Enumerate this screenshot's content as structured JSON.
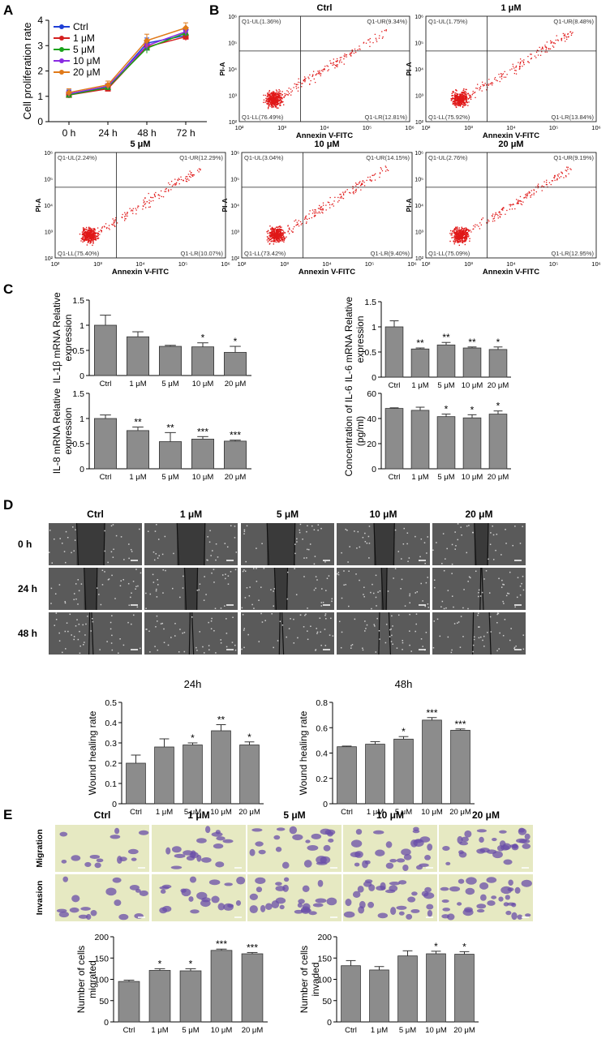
{
  "panel_labels": [
    "A",
    "B",
    "C",
    "D",
    "E"
  ],
  "conditions": [
    "Ctrl",
    "1 μM",
    "5 μM",
    "10 μM",
    "20 μM"
  ],
  "chart_data": [
    {
      "id": "A",
      "type": "line",
      "title": "",
      "xlabel": "",
      "ylabel": "Cell proliferation rate",
      "categories": [
        "0 h",
        "24 h",
        "48 h",
        "72 h"
      ],
      "ylim": [
        0,
        4
      ],
      "yticks": [
        0,
        1,
        2,
        3,
        4
      ],
      "legend_position": "top-left",
      "series": [
        {
          "name": "Ctrl",
          "color": "#1f3fd6",
          "values": [
            1.1,
            1.35,
            3.1,
            3.4
          ],
          "err": [
            0.15,
            0.12,
            0.2,
            0.15
          ]
        },
        {
          "name": "1 μM",
          "color": "#d42020",
          "values": [
            1.05,
            1.3,
            2.95,
            3.35
          ],
          "err": [
            0.12,
            0.1,
            0.2,
            0.15
          ]
        },
        {
          "name": "5 μM",
          "color": "#1aa21a",
          "values": [
            1.05,
            1.35,
            2.9,
            3.5
          ],
          "err": [
            0.12,
            0.1,
            0.2,
            0.15
          ]
        },
        {
          "name": "10 μM",
          "color": "#8a2be2",
          "values": [
            1.1,
            1.4,
            3.0,
            3.55
          ],
          "err": [
            0.12,
            0.1,
            0.2,
            0.15
          ]
        },
        {
          "name": "20 μM",
          "color": "#e07a1a",
          "values": [
            1.15,
            1.45,
            3.2,
            3.7
          ],
          "err": [
            0.15,
            0.15,
            0.25,
            0.2
          ]
        }
      ]
    },
    {
      "id": "C1",
      "type": "bar",
      "ylabel": "IL-1β mRNA Relative expression",
      "categories": [
        "Ctrl",
        "1 μM",
        "5 μM",
        "10 μM",
        "20 μM"
      ],
      "values": [
        1.0,
        0.77,
        0.58,
        0.57,
        0.46
      ],
      "err": [
        0.2,
        0.1,
        0.02,
        0.08,
        0.12
      ],
      "sig": [
        "",
        "",
        "",
        "*",
        "*"
      ],
      "ylim": [
        0,
        1.5
      ],
      "yticks": [
        0,
        0.5,
        1.0,
        1.5
      ]
    },
    {
      "id": "C2",
      "type": "bar",
      "ylabel": "IL-6 mRNA Relative expression",
      "categories": [
        "Ctrl",
        "1 μM",
        "5 μM",
        "10 μM",
        "20 μM"
      ],
      "values": [
        1.0,
        0.56,
        0.64,
        0.58,
        0.55
      ],
      "err": [
        0.12,
        0.02,
        0.05,
        0.02,
        0.05
      ],
      "sig": [
        "",
        "**",
        "**",
        "**",
        "*"
      ],
      "ylim": [
        0,
        1.5
      ],
      "yticks": [
        0,
        0.5,
        1.0,
        1.5
      ]
    },
    {
      "id": "C3",
      "type": "bar",
      "ylabel": "IL-8 mRNA Relative expression",
      "categories": [
        "Ctrl",
        "1 μM",
        "5 μM",
        "10 μM",
        "20 μM"
      ],
      "values": [
        1.0,
        0.76,
        0.54,
        0.59,
        0.55
      ],
      "err": [
        0.07,
        0.07,
        0.18,
        0.05,
        0.02
      ],
      "sig": [
        "",
        "**",
        "**",
        "***",
        "***"
      ],
      "ylim": [
        0,
        1.5
      ],
      "yticks": [
        0,
        0.5,
        1.0,
        1.5
      ]
    },
    {
      "id": "C4",
      "type": "bar",
      "ylabel": "Concentration of IL-6 (pg/ml)",
      "categories": [
        "Ctrl",
        "1 μM",
        "5 μM",
        "10 μM",
        "20 μM"
      ],
      "values": [
        48,
        46.5,
        41.5,
        40.5,
        43.5
      ],
      "err": [
        0.5,
        2.5,
        2,
        2.5,
        2.5
      ],
      "sig": [
        "",
        "",
        "*",
        "*",
        "*"
      ],
      "ylim": [
        0,
        60
      ],
      "yticks": [
        0,
        20,
        40,
        60
      ]
    },
    {
      "id": "D1",
      "type": "bar",
      "title": "24h",
      "ylabel": "Wound healing rate",
      "categories": [
        "Ctrl",
        "1 μM",
        "5 μM",
        "10 μM",
        "20 μM"
      ],
      "values": [
        0.2,
        0.28,
        0.29,
        0.36,
        0.29
      ],
      "err": [
        0.04,
        0.04,
        0.01,
        0.03,
        0.015
      ],
      "sig": [
        "",
        "",
        "*",
        "**",
        "*"
      ],
      "ylim": [
        0,
        0.5
      ],
      "yticks": [
        0,
        0.1,
        0.2,
        0.3,
        0.4,
        0.5
      ]
    },
    {
      "id": "D2",
      "type": "bar",
      "title": "48h",
      "ylabel": "Wound healing rate",
      "categories": [
        "Ctrl",
        "1 μM",
        "5 μM",
        "10 μM",
        "20 μM"
      ],
      "values": [
        0.45,
        0.47,
        0.51,
        0.66,
        0.58
      ],
      "err": [
        0.005,
        0.02,
        0.02,
        0.02,
        0.01
      ],
      "sig": [
        "",
        "",
        "*",
        "***",
        "***"
      ],
      "ylim": [
        0,
        0.8
      ],
      "yticks": [
        0,
        0.2,
        0.4,
        0.6,
        0.8
      ]
    },
    {
      "id": "E1",
      "type": "bar",
      "ylabel": "Number of cells migrated",
      "categories": [
        "Ctrl",
        "1 μM",
        "5 μM",
        "10 μM",
        "20 μM"
      ],
      "values": [
        95,
        121,
        120,
        168,
        160
      ],
      "err": [
        3,
        4,
        5,
        3,
        3
      ],
      "sig": [
        "",
        "*",
        "*",
        "***",
        "***"
      ],
      "ylim": [
        0,
        200
      ],
      "yticks": [
        0,
        50,
        100,
        150,
        200
      ]
    },
    {
      "id": "E2",
      "type": "bar",
      "ylabel": "Number of cells invaded",
      "categories": [
        "Ctrl",
        "1 μM",
        "5 μM",
        "10 μM",
        "20 μM"
      ],
      "values": [
        132,
        122,
        155,
        160,
        159
      ],
      "err": [
        12,
        8,
        12,
        6,
        6
      ],
      "sig": [
        "",
        "",
        "",
        "*",
        "*"
      ],
      "ylim": [
        0,
        200
      ],
      "yticks": [
        0,
        50,
        100,
        150,
        200
      ]
    }
  ],
  "flow_cytometry": {
    "xlabel": "Annexin V-FITC",
    "ylabel": "PI-A",
    "xticks": [
      "10²",
      "10³",
      "10⁴",
      "10⁵",
      "10⁶"
    ],
    "yticks": [
      "10²",
      "10³",
      "10⁴",
      "10⁵",
      "10⁶"
    ],
    "plots": [
      {
        "title": "Ctrl",
        "ul": "Q1-UL(1.36%)",
        "ur": "Q1-UR(9.34%)",
        "ll": "Q1-LL(76.49%)",
        "lr": "Q1-LR(12.81%)"
      },
      {
        "title": "1 μM",
        "ul": "Q1-UL(1.75%)",
        "ur": "Q1-UR(8.48%)",
        "ll": "Q1-LL(75.92%)",
        "lr": "Q1-LR(13.84%)"
      },
      {
        "title": "5 μM",
        "ul": "Q1-UL(2.24%)",
        "ur": "Q1-UR(12.29%)",
        "ll": "Q1-LL(75.40%)",
        "lr": "Q1-LR(10.07%)"
      },
      {
        "title": "10 μM",
        "ul": "Q1-UL(3.04%)",
        "ur": "Q1-UR(14.15%)",
        "ll": "Q1-LL(73.42%)",
        "lr": "Q1-LR(9.40%)"
      },
      {
        "title": "20 μM",
        "ul": "Q1-UL(2.76%)",
        "ur": "Q1-UR(9.19%)",
        "ll": "Q1-LL(75.09%)",
        "lr": "Q1-LR(12.95%)"
      }
    ]
  },
  "wound": {
    "rows": [
      "0 h",
      "24 h",
      "48 h"
    ]
  },
  "transwell": {
    "rows": [
      "Migration",
      "Invasion"
    ]
  },
  "colors": {
    "bar": "#8c8c8c",
    "dots": "#e01818",
    "image_bg": "#5a5a5a",
    "stain_bg": "#e6e9c2",
    "stain_cells": "#6a4ea8"
  }
}
